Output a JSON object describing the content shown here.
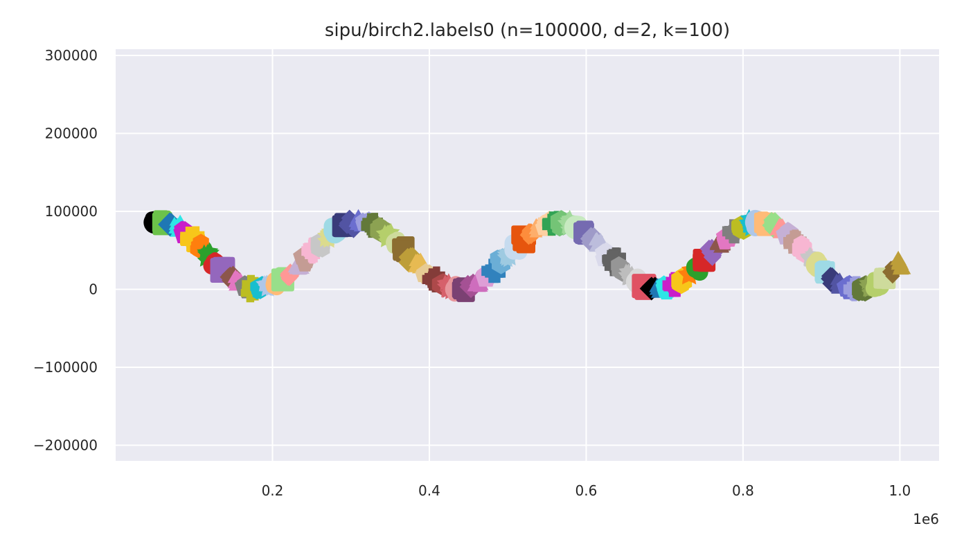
{
  "chart_data": {
    "type": "scatter",
    "title": "sipu/birch2.labels0 (n=100000, d=2, k=100)",
    "xlabel": "",
    "ylabel": "",
    "x_offset_label": "1e6",
    "xlim": [
      0,
      1050000
    ],
    "ylim": [
      -220000,
      308000
    ],
    "x_ticks": [
      200000,
      400000,
      600000,
      800000,
      1000000
    ],
    "x_tick_labels": [
      "0.2",
      "0.4",
      "0.6",
      "0.8",
      "1.0"
    ],
    "y_ticks": [
      300000,
      200000,
      100000,
      0,
      -100000,
      -200000
    ],
    "y_tick_labels": [
      "300000",
      "200000",
      "100000",
      "0",
      "−100000",
      "−200000"
    ],
    "grid": true,
    "background": "#eaeaf2",
    "grid_color": "#ffffff",
    "generating_curve": "sine",
    "curve_parameters": {
      "x_start": 50000,
      "x_end": 1000000,
      "n_clusters": 100,
      "y_center": 43000,
      "amplitude": 43000,
      "wavelength": 255000
    },
    "palette": [
      "#000000",
      "#e05263",
      "#6cc24a",
      "#1f77b4",
      "#2ee6e6",
      "#c91ec9",
      "#f7c61a",
      "#ff7f0e",
      "#2ca02c",
      "#d62728",
      "#9467bd",
      "#8c564b",
      "#e377c2",
      "#7f7f7f",
      "#bcbd22",
      "#17becf",
      "#aec7e8",
      "#ffbb78",
      "#98df8a",
      "#ff9896",
      "#c5b0d5",
      "#c49c94",
      "#f7b6d2",
      "#c7c7c7",
      "#dbdb8d",
      "#9edae5",
      "#393b79",
      "#5254a3",
      "#6b6ecf",
      "#9c9ede",
      "#637939",
      "#8ca252",
      "#b5cf6b",
      "#cedb9c",
      "#8c6d31",
      "#bd9e39",
      "#e7ba52",
      "#e7cb94",
      "#843c39",
      "#ad494a",
      "#d6616b",
      "#e7969c",
      "#7b4173",
      "#a55194",
      "#ce6dbd",
      "#de9ed6",
      "#3182bd",
      "#6baed6",
      "#9ecae1",
      "#c6dbef",
      "#e6550d",
      "#fd8d3c",
      "#fdae6b",
      "#fdd0a2",
      "#31a354",
      "#74c476",
      "#a1d99b",
      "#c7e9c0",
      "#756bb1",
      "#9e9ac8",
      "#bcbddc",
      "#dadaeb",
      "#636363",
      "#969696",
      "#bdbdbd",
      "#d9d9d9"
    ],
    "marker_shapes": [
      "circle",
      "square",
      "diamond",
      "triangle",
      "pentagon",
      "plus",
      "hexagon",
      "star"
    ]
  }
}
